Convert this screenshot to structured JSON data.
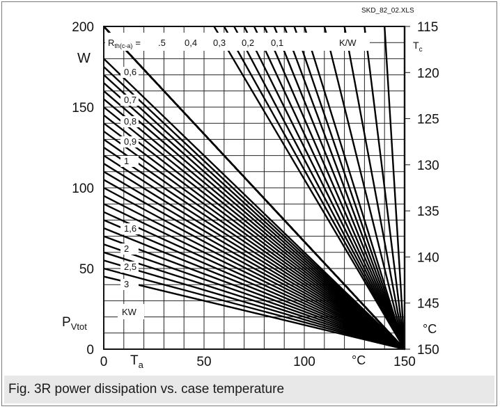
{
  "chart_data": {
    "type": "line",
    "source_label": "SKD_82_02.XLS",
    "x_axis": {
      "ticks": [
        "0",
        "50",
        "100",
        "150"
      ],
      "tick_values": [
        0,
        50,
        100,
        150
      ],
      "symbol_main": "T",
      "symbol_sub": "a",
      "unit": "°C",
      "range": [
        0,
        150
      ]
    },
    "y_axis_left": {
      "ticks": [
        "0",
        "50",
        "100",
        "150",
        "200"
      ],
      "tick_values": [
        0,
        50,
        100,
        150,
        200
      ],
      "unit": "W",
      "symbol_main": "P",
      "symbol_sub": "Vtot",
      "range": [
        0,
        200
      ]
    },
    "y_axis_right": {
      "ticks": [
        "115",
        "120",
        "125",
        "130",
        "135",
        "140",
        "145",
        "150"
      ],
      "tick_values": [
        115,
        120,
        125,
        130,
        135,
        140,
        145,
        150
      ],
      "symbol_main": "T",
      "symbol_sub": "c",
      "unit": "°C",
      "range": [
        150,
        115
      ]
    },
    "rth_ca": {
      "label_main": "R",
      "label_sub": "th(c-a)",
      "label_eq": "=",
      "unit": "K/W",
      "values": [
        0.1,
        0.2,
        0.3,
        0.4,
        0.5
      ]
    },
    "rth_ca_labels": [
      ".5",
      "0,4",
      "0,3",
      "0,2",
      "0,1"
    ],
    "ka_lines": {
      "unit": "KW",
      "values": [
        0.6,
        0.7,
        0.8,
        0.9,
        1,
        1.6,
        2,
        2.5,
        3
      ],
      "labels": [
        "0,6",
        "0,7",
        "0,8",
        "0,9",
        "1",
        "1,6",
        "2",
        "2,5",
        "3"
      ]
    },
    "series_endpoint": {
      "x": 150,
      "y": 0
    },
    "series_at_x0": [
      {
        "y": 200
      },
      {
        "y": 200
      },
      {
        "y": 200
      },
      {
        "y": 200
      },
      {
        "y": 200
      },
      {
        "y": 200
      },
      {
        "y": 200
      },
      {
        "y": 200
      },
      {
        "y": 200
      },
      {
        "y": 200
      },
      {
        "y": 200
      },
      {
        "y": 200
      },
      {
        "y": 200
      },
      {
        "y": 200
      },
      {
        "y": 200
      },
      {
        "y": 180
      },
      {
        "y": 175
      },
      {
        "y": 170
      },
      {
        "y": 165
      },
      {
        "y": 160
      },
      {
        "y": 155
      },
      {
        "y": 150
      },
      {
        "y": 145
      },
      {
        "y": 140
      },
      {
        "y": 135
      },
      {
        "y": 130
      },
      {
        "y": 125
      },
      {
        "y": 120
      },
      {
        "y": 115
      },
      {
        "y": 110
      },
      {
        "y": 105
      },
      {
        "y": 100
      },
      {
        "y": 95
      },
      {
        "y": 90
      },
      {
        "y": 85
      },
      {
        "y": 80
      },
      {
        "y": 75
      },
      {
        "y": 70
      },
      {
        "y": 65
      },
      {
        "y": 60
      },
      {
        "y": 55
      },
      {
        "y": 50
      },
      {
        "y": 45
      }
    ],
    "series_x_at_top": [
      150,
      140,
      130,
      120,
      110,
      100,
      95,
      90,
      85,
      80,
      75,
      70,
      65,
      60,
      55
    ],
    "grid": true
  },
  "caption": "Fig. 3R power dissipation vs. case temperature"
}
